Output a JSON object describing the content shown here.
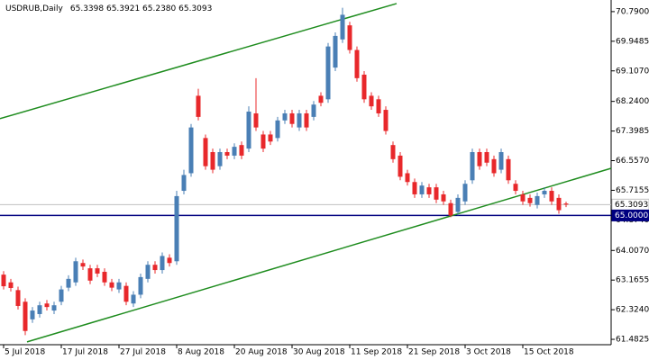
{
  "chart_data": {
    "type": "candlestick",
    "title": "USDRUB,Daily",
    "quote": "65.3398 65.3921 65.2380 65.3093",
    "up_color": "#4a7fb5",
    "down_color": "#e8282b",
    "categories": [
      "5 Jul 2018",
      null,
      null,
      null,
      null,
      null,
      null,
      null,
      "17 Jul 2018",
      null,
      null,
      null,
      null,
      null,
      null,
      null,
      "27 Jul 2018",
      null,
      null,
      null,
      null,
      null,
      null,
      null,
      "8 Aug 2018",
      null,
      null,
      null,
      null,
      null,
      null,
      null,
      "20 Aug 2018",
      null,
      null,
      null,
      null,
      null,
      null,
      null,
      "30 Aug 2018",
      null,
      null,
      null,
      null,
      null,
      null,
      null,
      "11 Sep 2018",
      null,
      null,
      null,
      null,
      null,
      null,
      null,
      "21 Sep 2018",
      null,
      null,
      null,
      null,
      null,
      null,
      null,
      "3 Oct 2018",
      null,
      null,
      null,
      null,
      null,
      null,
      null,
      "15 Oct 2018",
      null,
      null,
      null,
      null,
      null,
      null
    ],
    "open": [
      63.32,
      63.1,
      62.88,
      62.55,
      62.05,
      62.2,
      62.5,
      62.3,
      62.55,
      62.95,
      63.1,
      63.65,
      63.5,
      63.5,
      63.4,
      63.1,
      62.9,
      63.0,
      62.5,
      62.75,
      63.2,
      63.6,
      63.45,
      63.8,
      63.7,
      65.7,
      66.2,
      68.4,
      67.2,
      66.8,
      66.4,
      66.8,
      66.7,
      67.0,
      66.9,
      67.9,
      67.3,
      67.3,
      67.2,
      67.7,
      67.9,
      67.5,
      67.9,
      67.8,
      68.4,
      68.3,
      69.2,
      70.0,
      70.4,
      69.7,
      69.0,
      68.4,
      68.3,
      68.0,
      67.0,
      66.7,
      66.2,
      65.95,
      65.6,
      65.8,
      65.8,
      65.6,
      65.35,
      65.1,
      65.4,
      66.0,
      66.8,
      66.8,
      66.6,
      66.3,
      66.6,
      65.9,
      65.6,
      65.5,
      65.3,
      65.6,
      65.7,
      65.5,
      65.3398
    ],
    "high": [
      63.42,
      63.2,
      62.98,
      62.65,
      62.4,
      62.55,
      62.6,
      62.55,
      63.0,
      63.3,
      63.8,
      63.75,
      63.6,
      63.6,
      63.5,
      63.2,
      63.2,
      63.1,
      62.85,
      63.35,
      63.7,
      63.7,
      63.95,
      63.9,
      65.7,
      66.3,
      67.6,
      68.6,
      67.3,
      66.9,
      66.9,
      66.9,
      67.05,
      67.1,
      68.1,
      68.9,
      67.4,
      67.4,
      67.8,
      68.0,
      68.0,
      68.0,
      68.0,
      68.25,
      68.5,
      69.9,
      70.2,
      70.9,
      70.5,
      69.8,
      69.1,
      68.5,
      68.4,
      68.1,
      67.1,
      66.8,
      66.3,
      66.05,
      65.95,
      65.9,
      65.9,
      65.7,
      65.45,
      65.6,
      66.0,
      66.9,
      66.9,
      66.9,
      66.7,
      66.9,
      66.7,
      66.0,
      65.7,
      65.6,
      65.65,
      65.8,
      65.8,
      65.6,
      65.3921
    ],
    "low": [
      62.9,
      62.84,
      62.33,
      61.6,
      61.95,
      62.1,
      62.3,
      62.2,
      62.45,
      62.85,
      63.0,
      63.45,
      63.05,
      63.25,
      63.0,
      62.85,
      62.8,
      62.45,
      62.4,
      62.65,
      63.1,
      63.35,
      63.35,
      63.55,
      63.6,
      65.6,
      66.1,
      67.7,
      66.3,
      66.2,
      66.3,
      66.6,
      66.6,
      66.6,
      66.8,
      67.4,
      66.8,
      67.0,
      67.1,
      67.6,
      67.5,
      67.4,
      67.4,
      67.7,
      68.1,
      68.2,
      69.1,
      69.9,
      69.6,
      68.8,
      68.2,
      68.0,
      67.8,
      67.3,
      66.5,
      66.0,
      65.85,
      65.5,
      65.5,
      65.5,
      65.35,
      65.3,
      64.95,
      65.0,
      65.3,
      65.9,
      66.3,
      66.4,
      66.1,
      66.2,
      65.9,
      65.6,
      65.3,
      65.25,
      65.2,
      65.5,
      65.3,
      65.05,
      65.238
    ],
    "close": [
      62.99,
      62.94,
      62.43,
      61.72,
      62.3,
      62.45,
      62.4,
      62.45,
      62.9,
      63.2,
      63.7,
      63.55,
      63.15,
      63.35,
      63.1,
      62.95,
      63.1,
      62.55,
      62.75,
      63.25,
      63.6,
      63.45,
      63.85,
      63.65,
      65.55,
      66.15,
      67.5,
      67.8,
      66.4,
      66.3,
      66.8,
      66.7,
      66.95,
      66.7,
      67.95,
      67.5,
      66.9,
      67.1,
      67.7,
      67.9,
      67.6,
      67.9,
      67.5,
      68.15,
      68.2,
      69.8,
      70.1,
      70.7,
      69.7,
      68.9,
      68.3,
      68.1,
      67.9,
      67.4,
      66.6,
      66.1,
      65.95,
      65.6,
      65.85,
      65.6,
      65.45,
      65.4,
      65.0,
      65.5,
      65.9,
      66.8,
      66.4,
      66.5,
      66.2,
      66.8,
      66.0,
      65.7,
      65.4,
      65.35,
      65.55,
      65.7,
      65.4,
      65.15,
      65.3093
    ],
    "ylim": [
      61.33,
      71.12
    ],
    "yticks": [
      {
        "value": 70.79,
        "label": "70.7900"
      },
      {
        "value": 69.9485,
        "label": "69.9485"
      },
      {
        "value": 69.107,
        "label": "69.1070"
      },
      {
        "value": 68.24,
        "label": "68.2400"
      },
      {
        "value": 67.3985,
        "label": "67.3985"
      },
      {
        "value": 66.557,
        "label": "66.5570"
      },
      {
        "value": 65.7155,
        "label": "65.7155"
      },
      {
        "value": 64.874,
        "label": "64.8740"
      },
      {
        "value": 64.007,
        "label": "64.0070"
      },
      {
        "value": 63.1655,
        "label": "63.1655"
      },
      {
        "value": 62.324,
        "label": "62.3240"
      },
      {
        "value": 61.4825,
        "label": "61.4825"
      }
    ],
    "levels": [
      {
        "value": 65.3093,
        "label": "65.3093",
        "color": "#c0c0c0",
        "label_fill": "#ffffff",
        "label_color": "#000000"
      },
      {
        "value": 65.0,
        "label": "65.0000",
        "color": "#000080",
        "label_fill": "#000080",
        "label_color": "#ffffff"
      }
    ],
    "trendlines": [
      {
        "color": "#1e8c1e",
        "x": [
          -0.5,
          54.5
        ],
        "values": [
          67.75,
          71.02
        ]
      },
      {
        "color": "#1e8c1e",
        "x": [
          3.25,
          84.25
        ],
        "values": [
          61.41,
          66.34
        ]
      }
    ]
  }
}
